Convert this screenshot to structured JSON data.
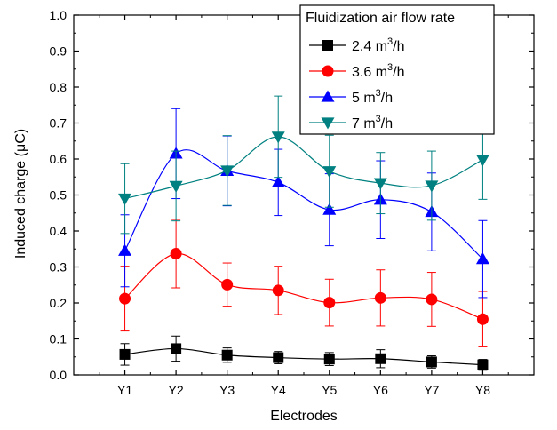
{
  "chart_data": {
    "type": "line",
    "xlabel": "Electrodes",
    "ylabel": "Induced charge (μC)",
    "categories": [
      "Y1",
      "Y2",
      "Y3",
      "Y4",
      "Y5",
      "Y6",
      "Y7",
      "Y8"
    ],
    "ylim": [
      0.0,
      1.0
    ],
    "yticks": [
      "0.0",
      "0.1",
      "0.2",
      "0.3",
      "0.4",
      "0.5",
      "0.6",
      "0.7",
      "0.8",
      "0.9",
      "1.0"
    ],
    "grid": false,
    "legend": {
      "title": "Fluidization air flow rate",
      "placement": "top-right",
      "unit_prefix": "m",
      "unit_power": "3",
      "unit_suffix": "/h"
    },
    "series": [
      {
        "name": "2.4 m3/h",
        "label_value": "2.4",
        "color": "#000000",
        "marker": "square",
        "values": [
          0.057,
          0.073,
          0.055,
          0.048,
          0.044,
          0.045,
          0.036,
          0.028
        ],
        "errors": [
          0.03,
          0.035,
          0.02,
          0.017,
          0.018,
          0.025,
          0.017,
          0.015
        ]
      },
      {
        "name": "3.6 m3/h",
        "label_value": "3.6",
        "color": "#ff0000",
        "marker": "circle",
        "values": [
          0.212,
          0.337,
          0.251,
          0.235,
          0.201,
          0.214,
          0.21,
          0.155
        ],
        "errors": [
          0.09,
          0.095,
          0.06,
          0.067,
          0.065,
          0.078,
          0.075,
          0.077
        ]
      },
      {
        "name": "5 m3/h",
        "label_value": "5",
        "color": "#0000ff",
        "marker": "triangle-up",
        "values": [
          0.345,
          0.615,
          0.567,
          0.535,
          0.459,
          0.487,
          0.453,
          0.322
        ],
        "errors": [
          0.1,
          0.125,
          0.097,
          0.092,
          0.1,
          0.108,
          0.108,
          0.107
        ]
      },
      {
        "name": "7 m3/h",
        "label_value": "7",
        "color": "#008080",
        "marker": "triangle-down",
        "values": [
          0.49,
          0.525,
          0.568,
          0.662,
          0.566,
          0.533,
          0.526,
          0.598
        ],
        "errors": [
          0.097,
          0.097,
          0.097,
          0.113,
          0.1,
          0.085,
          0.096,
          0.11
        ]
      }
    ]
  }
}
